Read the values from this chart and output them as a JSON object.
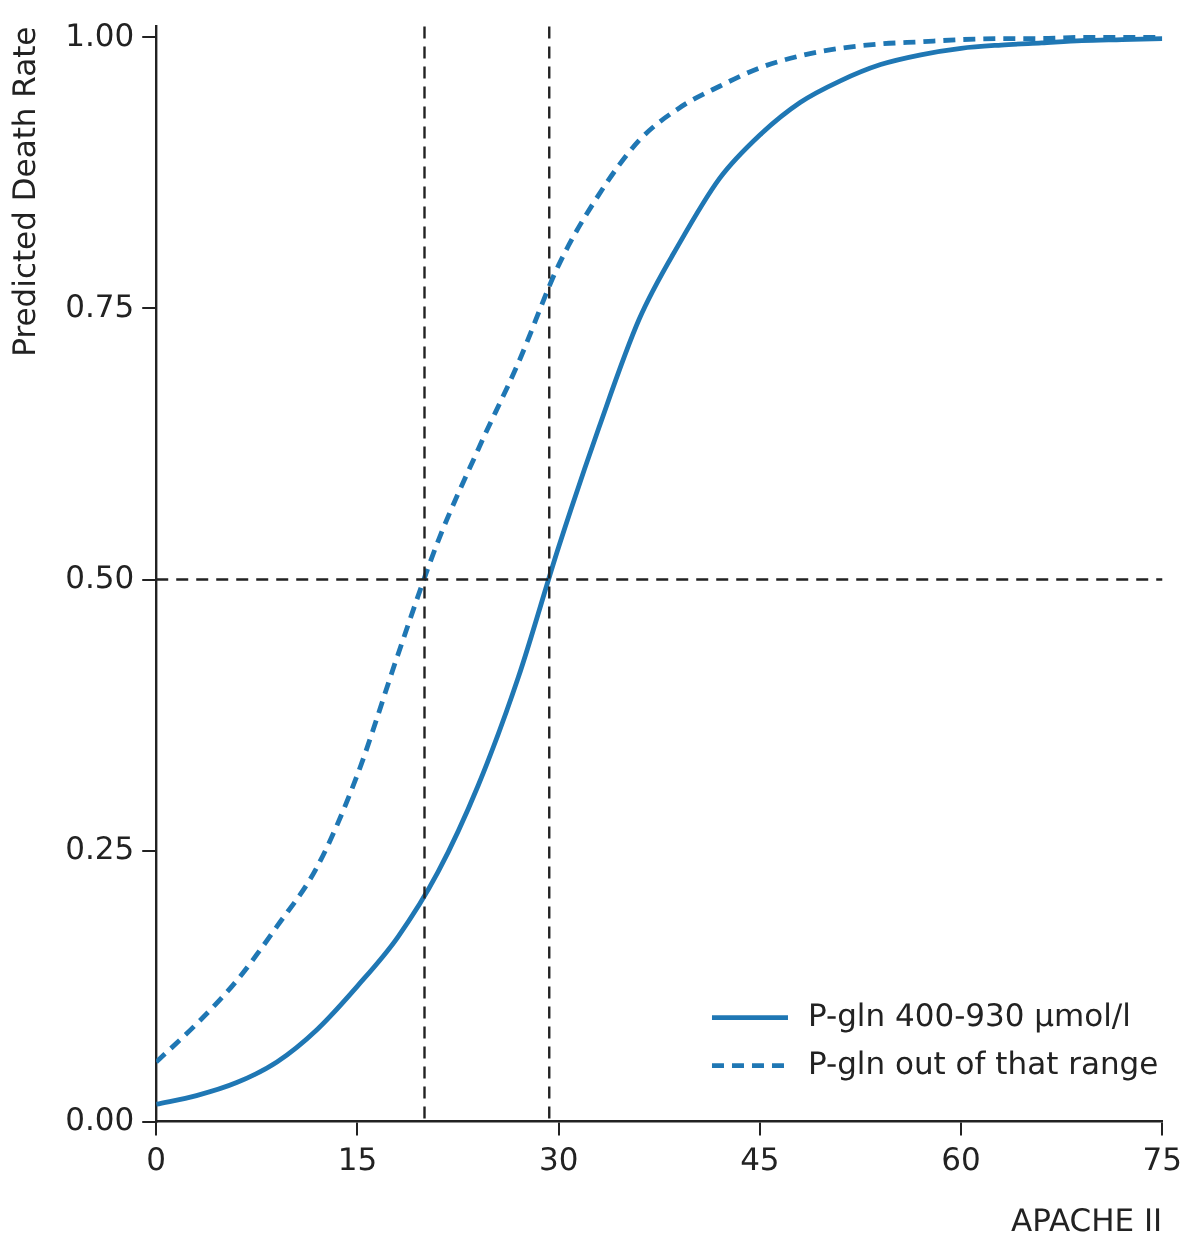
{
  "chart_data": {
    "type": "line",
    "xlabel": "APACHE II",
    "ylabel": "Predicted Death Rate",
    "x": [
      0,
      3,
      6,
      9,
      12,
      15,
      18,
      21,
      24,
      27,
      30,
      33,
      36,
      39,
      42,
      45,
      48,
      51,
      54,
      57,
      60,
      63,
      66,
      69,
      72,
      75
    ],
    "series": [
      {
        "name": "P-gln 400-930 µmol/l",
        "color": "#1f77b4",
        "line_style": "solid",
        "values": [
          0.016,
          0.024,
          0.036,
          0.055,
          0.085,
          0.125,
          0.17,
          0.23,
          0.31,
          0.41,
          0.53,
          0.64,
          0.74,
          0.81,
          0.87,
          0.91,
          0.94,
          0.96,
          0.975,
          0.984,
          0.99,
          0.993,
          0.995,
          0.997,
          0.998,
          0.999
        ]
      },
      {
        "name": "P-gln out of that range",
        "color": "#1f77b4",
        "line_style": "dashed",
        "values": [
          0.055,
          0.09,
          0.13,
          0.18,
          0.235,
          0.32,
          0.43,
          0.535,
          0.62,
          0.7,
          0.79,
          0.855,
          0.905,
          0.935,
          0.955,
          0.972,
          0.983,
          0.99,
          0.994,
          0.996,
          0.998,
          0.999,
          0.999,
          1.0,
          1.0,
          1.0
        ]
      }
    ],
    "xlim": [
      0,
      75
    ],
    "xticks": [
      0,
      15,
      30,
      45,
      60,
      75
    ],
    "ylim": [
      0,
      1.01
    ],
    "yticks": [
      {
        "value": 0,
        "label": "0.00"
      },
      {
        "value": 0.25,
        "label": "0.25"
      },
      {
        "value": 0.5,
        "label": "0.50"
      },
      {
        "value": 0.75,
        "label": "0.75"
      },
      {
        "value": 1,
        "label": "1.00"
      }
    ],
    "ref_lines": [
      {
        "axis": "x",
        "value": 20,
        "color": "#222222",
        "line_style": "dashed"
      },
      {
        "axis": "x",
        "value": 29.3,
        "color": "#222222",
        "line_style": "dashed"
      },
      {
        "axis": "y",
        "value": 0.5,
        "color": "#222222",
        "line_style": "dashed"
      }
    ],
    "grid": false,
    "legend": "bottom right",
    "marker": "none"
  }
}
